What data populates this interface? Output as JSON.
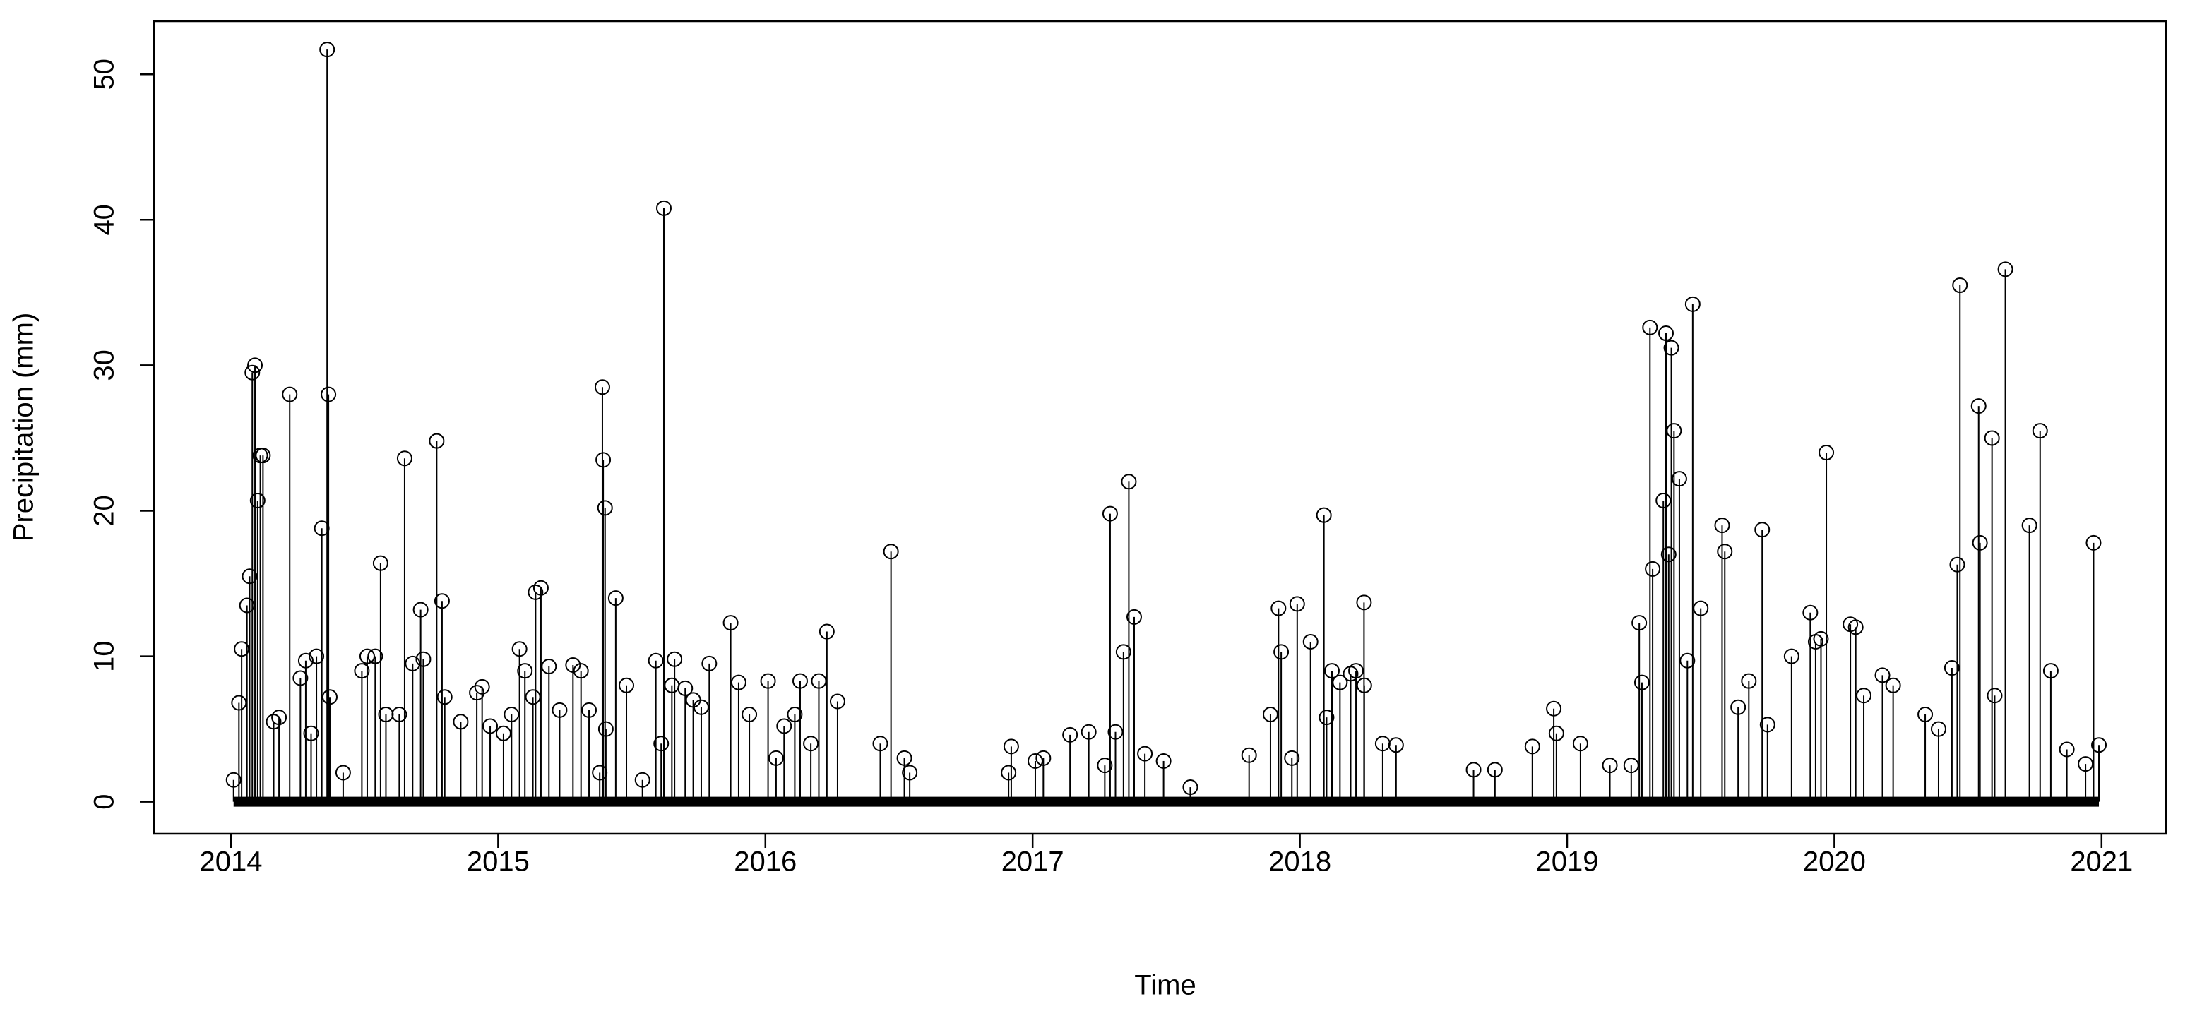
{
  "chart_data": {
    "type": "stem",
    "xlabel": "Time",
    "ylabel": "Precipitation (mm)",
    "color": "#000000",
    "xlim": [
      2013.712,
      2021.241
    ],
    "ylim": [
      -2.2,
      53.65
    ],
    "xticks": [
      2014,
      2015,
      2016,
      2017,
      2018,
      2019,
      2020,
      2021
    ],
    "yticks": [
      0,
      10,
      20,
      30,
      40,
      50
    ],
    "grid": false,
    "x": [
      2014.01,
      2014.03,
      2014.04,
      2014.06,
      2014.07,
      2014.08,
      2014.09,
      2014.1,
      2014.11,
      2014.12,
      2014.16,
      2014.18,
      2014.22,
      2014.26,
      2014.28,
      2014.3,
      2014.32,
      2014.34,
      2014.36,
      2014.365,
      2014.37,
      2014.42,
      2014.49,
      2014.51,
      2014.54,
      2014.56,
      2014.58,
      2014.63,
      2014.65,
      2014.68,
      2014.71,
      2014.72,
      2014.77,
      2014.79,
      2014.8,
      2014.86,
      2014.92,
      2014.94,
      2014.97,
      2015.02,
      2015.05,
      2015.08,
      2015.1,
      2015.13,
      2015.14,
      2015.16,
      2015.19,
      2015.23,
      2015.28,
      2015.31,
      2015.34,
      2015.38,
      2015.39,
      2015.393,
      2015.4,
      2015.403,
      2015.44,
      2015.48,
      2015.54,
      2015.59,
      2015.61,
      2015.62,
      2015.65,
      2015.66,
      2015.7,
      2015.73,
      2015.76,
      2015.79,
      2015.87,
      2015.9,
      2015.94,
      2016.01,
      2016.04,
      2016.07,
      2016.11,
      2016.13,
      2016.17,
      2016.2,
      2016.23,
      2016.27,
      2016.43,
      2016.47,
      2016.52,
      2016.54,
      2016.91,
      2016.92,
      2017.01,
      2017.04,
      2017.14,
      2017.21,
      2017.27,
      2017.29,
      2017.31,
      2017.34,
      2017.36,
      2017.38,
      2017.42,
      2017.49,
      2017.59,
      2017.81,
      2017.89,
      2017.92,
      2017.93,
      2017.97,
      2017.99,
      2018.04,
      2018.09,
      2018.1,
      2018.12,
      2018.15,
      2018.19,
      2018.21,
      2018.24,
      2018.241,
      2018.31,
      2018.36,
      2018.65,
      2018.73,
      2018.87,
      2018.95,
      2018.96,
      2019.05,
      2019.16,
      2019.24,
      2019.27,
      2019.28,
      2019.31,
      2019.32,
      2019.36,
      2019.37,
      2019.38,
      2019.39,
      2019.4,
      2019.42,
      2019.45,
      2019.47,
      2019.5,
      2019.58,
      2019.59,
      2019.64,
      2019.68,
      2019.73,
      2019.75,
      2019.84,
      2019.91,
      2019.93,
      2019.95,
      2019.97,
      2020.06,
      2020.08,
      2020.11,
      2020.18,
      2020.22,
      2020.34,
      2020.39,
      2020.44,
      2020.46,
      2020.47,
      2020.54,
      2020.545,
      2020.59,
      2020.6,
      2020.64,
      2020.73,
      2020.77,
      2020.81,
      2020.87,
      2020.94,
      2020.97,
      2020.99
    ],
    "values": [
      1.5,
      6.8,
      10.5,
      13.5,
      15.5,
      29.5,
      30,
      20.7,
      23.8,
      23.8,
      5.5,
      5.8,
      28,
      8.5,
      9.7,
      4.7,
      10,
      18.8,
      51.7,
      28,
      7.2,
      2,
      9,
      10,
      10,
      16.4,
      6,
      6,
      23.6,
      9.5,
      13.2,
      9.8,
      24.8,
      13.8,
      7.2,
      5.5,
      7.5,
      7.9,
      5.2,
      4.7,
      6,
      10.5,
      9,
      7.2,
      14.4,
      14.7,
      9.3,
      6.3,
      9.4,
      9,
      6.3,
      2,
      28.5,
      23.5,
      20.2,
      5,
      14,
      8,
      1.5,
      9.7,
      4,
      40.8,
      8,
      9.8,
      7.8,
      7,
      6.5,
      9.5,
      12.3,
      8.2,
      6,
      8.3,
      3,
      5.2,
      6,
      8.3,
      4,
      8.3,
      11.7,
      6.9,
      4,
      17.2,
      3,
      2,
      2,
      3.8,
      2.8,
      3,
      4.6,
      4.8,
      2.5,
      19.8,
      4.8,
      10.3,
      22,
      12.7,
      3.3,
      2.8,
      1,
      3.2,
      6,
      13.3,
      10.3,
      3,
      13.6,
      11,
      19.7,
      5.8,
      9,
      8.2,
      8.8,
      9,
      13.7,
      8,
      4,
      3.9,
      2.2,
      2.2,
      3.8,
      6.4,
      4.7,
      4,
      2.5,
      2.5,
      12.3,
      8.2,
      32.6,
      16,
      20.7,
      32.2,
      17,
      31.2,
      25.5,
      22.2,
      9.7,
      34.2,
      13.3,
      19,
      17.2,
      6.5,
      8.3,
      18.7,
      5.3,
      10,
      13,
      11,
      11.2,
      24,
      12.2,
      12,
      7.3,
      8.7,
      8,
      6,
      5,
      9.2,
      16.3,
      35.5,
      27.2,
      17.8,
      25,
      7.3,
      36.6,
      19,
      25.5,
      9,
      3.6,
      2.6,
      17.8,
      3.9
    ]
  }
}
